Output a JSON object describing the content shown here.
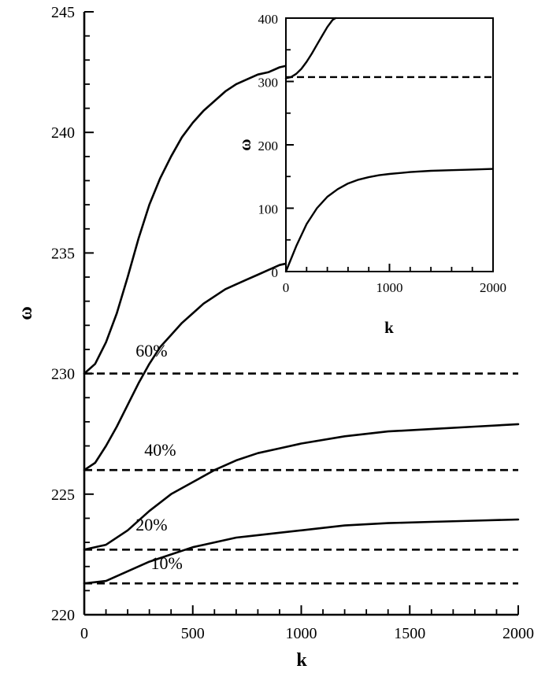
{
  "chart_data": [
    {
      "type": "line",
      "title": "",
      "xlabel": "k",
      "ylabel": "ω",
      "xlim": [
        0,
        2000
      ],
      "ylim": [
        220,
        245
      ],
      "xticks": [
        0,
        500,
        1000,
        1500,
        2000
      ],
      "yticks": [
        220,
        225,
        230,
        235,
        240,
        245
      ],
      "grid": false,
      "legend": "none",
      "annotations": [
        {
          "text": "60%",
          "x": 310,
          "y": 230.7
        },
        {
          "text": "40%",
          "x": 350,
          "y": 226.6
        },
        {
          "text": "20%",
          "x": 310,
          "y": 223.5
        },
        {
          "text": "10%",
          "x": 380,
          "y": 221.9
        }
      ],
      "series": [
        {
          "style": "solid",
          "x": [
            0,
            50,
            100,
            150,
            200,
            250,
            300,
            350,
            400,
            450,
            500,
            550,
            600,
            650,
            700,
            750,
            800,
            850,
            900,
            950
          ],
          "y": [
            230.0,
            230.4,
            231.3,
            232.5,
            234.0,
            235.6,
            237.0,
            238.1,
            239.0,
            239.8,
            240.4,
            240.9,
            241.3,
            241.7,
            242.0,
            242.2,
            242.4,
            242.5,
            242.7,
            242.8
          ]
        },
        {
          "style": "solid",
          "x": [
            0,
            50,
            100,
            150,
            200,
            250,
            300,
            350,
            400,
            450,
            500,
            550,
            600,
            650,
            700,
            750,
            800,
            850,
            900,
            950
          ],
          "y": [
            226.0,
            226.3,
            227.0,
            227.8,
            228.7,
            229.6,
            230.4,
            231.1,
            231.6,
            232.1,
            232.5,
            232.9,
            233.2,
            233.5,
            233.7,
            233.9,
            234.1,
            234.3,
            234.5,
            234.6
          ]
        },
        {
          "style": "solid",
          "x": [
            0,
            100,
            200,
            300,
            400,
            500,
            600,
            700,
            800,
            900,
            1000,
            1200,
            1400,
            1600,
            1800,
            2000
          ],
          "y": [
            222.7,
            222.9,
            223.5,
            224.3,
            225.0,
            225.5,
            226.0,
            226.4,
            226.7,
            226.9,
            227.1,
            227.4,
            227.6,
            227.7,
            227.8,
            227.9
          ]
        },
        {
          "style": "solid",
          "x": [
            0,
            100,
            200,
            300,
            400,
            500,
            600,
            700,
            800,
            900,
            1000,
            1200,
            1400,
            1600,
            1800,
            2000
          ],
          "y": [
            221.3,
            221.4,
            221.8,
            222.2,
            222.5,
            222.8,
            223.0,
            223.2,
            223.3,
            223.4,
            223.5,
            223.7,
            223.8,
            223.85,
            223.9,
            223.95
          ]
        },
        {
          "style": "dashed",
          "x": [
            0,
            2000
          ],
          "y": [
            230.0,
            230.0
          ]
        },
        {
          "style": "dashed",
          "x": [
            0,
            2000
          ],
          "y": [
            226.0,
            226.0
          ]
        },
        {
          "style": "dashed",
          "x": [
            0,
            2000
          ],
          "y": [
            222.7,
            222.7
          ]
        },
        {
          "style": "dashed",
          "x": [
            0,
            2000
          ],
          "y": [
            221.3,
            221.3
          ]
        }
      ]
    },
    {
      "type": "line",
      "title": "",
      "xlabel": "k",
      "ylabel": "ω",
      "xlim": [
        0,
        2000
      ],
      "ylim": [
        0,
        400
      ],
      "xticks": [
        0,
        1000,
        2000
      ],
      "yticks": [
        0,
        100,
        200,
        300,
        400
      ],
      "grid": false,
      "legend": "none",
      "series": [
        {
          "style": "solid",
          "x": [
            0,
            50,
            100,
            150,
            200,
            250,
            300,
            350,
            400,
            450,
            480
          ],
          "y": [
            305,
            307,
            312,
            320,
            331,
            344,
            358,
            372,
            386,
            397,
            400
          ]
        },
        {
          "style": "dashed",
          "x": [
            0,
            2000
          ],
          "y": [
            307,
            307
          ]
        },
        {
          "style": "solid",
          "x": [
            0,
            100,
            200,
            300,
            400,
            500,
            600,
            700,
            800,
            900,
            1000,
            1200,
            1400,
            1600,
            1800,
            2000
          ],
          "y": [
            0,
            40,
            75,
            100,
            118,
            130,
            139,
            145,
            149,
            152,
            154,
            157,
            159,
            160,
            161,
            162
          ]
        }
      ]
    }
  ]
}
